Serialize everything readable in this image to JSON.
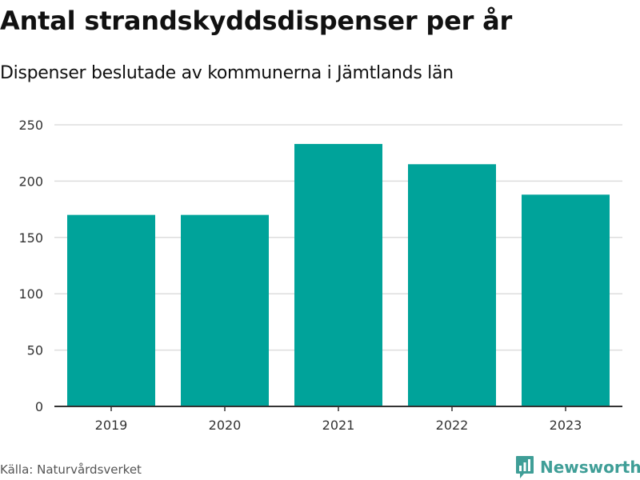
{
  "header": {
    "title": "Antal strandskyddsdispenser per år",
    "subtitle": "Dispenser beslutade av kommunerna i Jämtlands län"
  },
  "footer": {
    "source": "Källa: Naturvårdsverket",
    "brand": "Newsworthy",
    "brand_icon": "bar-chart-icon"
  },
  "colors": {
    "bar": "#00A39A",
    "grid": "#dddddd",
    "axis": "#333333",
    "brand": "#3f9e97"
  },
  "chart_data": {
    "type": "bar",
    "title": "Antal strandskyddsdispenser per år",
    "subtitle": "Dispenser beslutade av kommunerna i Jämtlands län",
    "xlabel": "",
    "ylabel": "",
    "categories": [
      "2019",
      "2020",
      "2021",
      "2022",
      "2023"
    ],
    "values": [
      170,
      170,
      233,
      215,
      188
    ],
    "ylim": [
      0,
      250
    ],
    "yticks": [
      0,
      50,
      100,
      150,
      200,
      250
    ],
    "grid": true,
    "legend": "none"
  }
}
